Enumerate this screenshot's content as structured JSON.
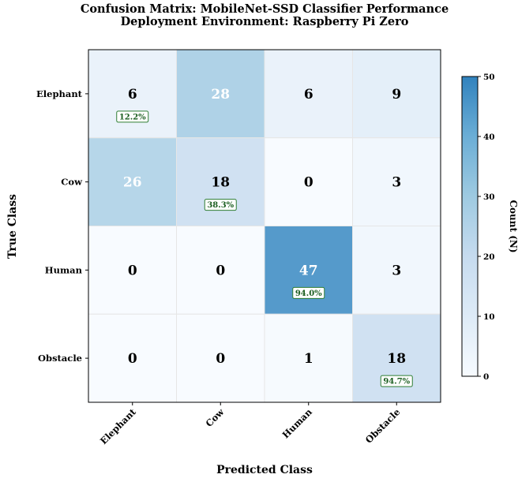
{
  "chart_data": {
    "type": "heatmap",
    "title": "Confusion Matrix: MobileNet-SSD Classifier Performance",
    "subtitle": "Deployment Environment: Raspberry Pi Zero",
    "xlabel": "Predicted Class",
    "ylabel": "True Class",
    "x_categories": [
      "Elephant",
      "Cow",
      "Human",
      "Obstacle"
    ],
    "y_categories": [
      "Elephant",
      "Cow",
      "Human",
      "Obstacle"
    ],
    "values": [
      [
        6,
        28,
        6,
        9
      ],
      [
        26,
        18,
        0,
        3
      ],
      [
        0,
        0,
        47,
        3
      ],
      [
        0,
        0,
        1,
        18
      ]
    ],
    "diagonal_labels": [
      "12.2%",
      "38.3%",
      "94.0%",
      "94.7%"
    ],
    "colorbar": {
      "label": "Count (N)",
      "range": [
        0,
        50
      ],
      "ticks": [
        "0",
        "10",
        "20",
        "30",
        "40",
        "50"
      ],
      "colormap": "Blues"
    },
    "colors": {
      "low": "#f7fbff",
      "high": "#3182bd",
      "diag_box_border": "#2e7d32",
      "diag_box_text": "#1b5e20"
    },
    "grid": true
  }
}
